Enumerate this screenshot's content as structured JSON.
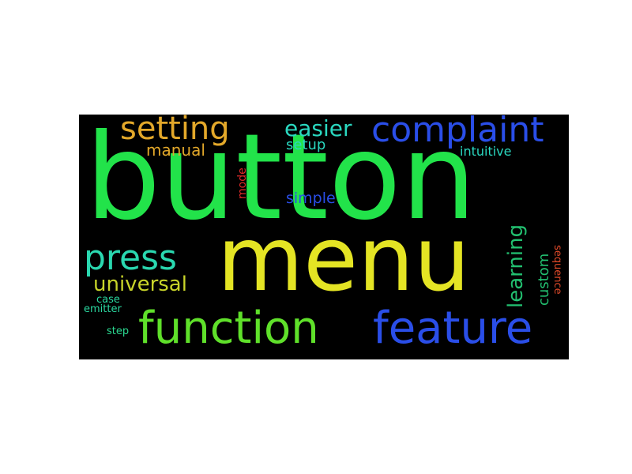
{
  "word_cloud": {
    "background": "#000000",
    "words": {
      "button": {
        "text": "button",
        "color": "#22e34a"
      },
      "menu": {
        "text": "menu",
        "color": "#e4e424"
      },
      "function": {
        "text": "function",
        "color": "#5fe02a"
      },
      "feature": {
        "text": "feature",
        "color": "#2a4ee8"
      },
      "complaint": {
        "text": "complaint",
        "color": "#2a4ee8"
      },
      "setting": {
        "text": "setting",
        "color": "#e3a82a"
      },
      "press": {
        "text": "press",
        "color": "#2ad8b0"
      },
      "easier": {
        "text": "easier",
        "color": "#2ad8c0"
      },
      "universal": {
        "text": "universal",
        "color": "#c8d42a"
      },
      "learning": {
        "text": "learning",
        "color": "#22c070"
      },
      "manual": {
        "text": "manual",
        "color": "#e3a82a"
      },
      "setup": {
        "text": "setup",
        "color": "#2ad8c0"
      },
      "simple": {
        "text": "simple",
        "color": "#2a4ee8"
      },
      "intuitive": {
        "text": "intuitive",
        "color": "#2ad8c0"
      },
      "custom": {
        "text": "custom",
        "color": "#22c070"
      },
      "mode": {
        "text": "mode",
        "color": "#e02a2a"
      },
      "sequence": {
        "text": "sequence",
        "color": "#e04a2a"
      },
      "case": {
        "text": "case",
        "color": "#2ad8a0"
      },
      "emitter": {
        "text": "emitter",
        "color": "#2ad8a0"
      },
      "step": {
        "text": "step",
        "color": "#2ad890"
      }
    }
  }
}
